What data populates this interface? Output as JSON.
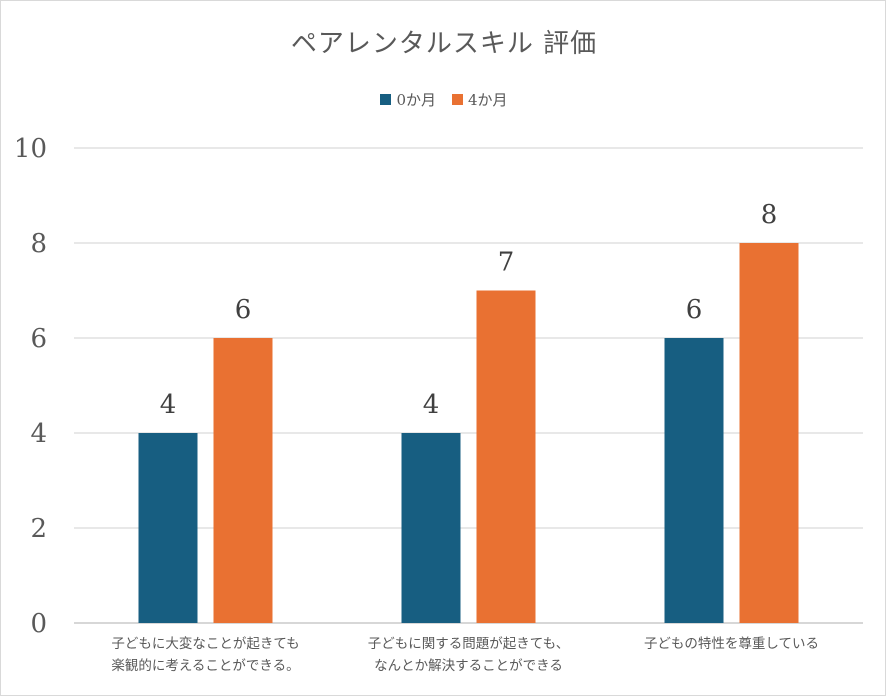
{
  "chart_data": {
    "type": "bar",
    "title": "ペアレンタルスキル 評価",
    "categories": [
      [
        "子どもに大変なことが起きても",
        "楽観的に考えることができる。"
      ],
      [
        "子どもに関する問題が起きても、",
        "なんとか解決することができる"
      ],
      [
        "子どもの特性を尊重している"
      ]
    ],
    "series": [
      {
        "name": "0か月",
        "color": "#175e81",
        "values": [
          4,
          4,
          6
        ]
      },
      {
        "name": "4か月",
        "color": "#e97132",
        "values": [
          6,
          7,
          8
        ]
      }
    ],
    "ylim": [
      0,
      10
    ],
    "yticks": [
      "0",
      "2",
      "4",
      "6",
      "8",
      "10"
    ],
    "grid": true,
    "legend_position": "top",
    "data_labels": true
  }
}
